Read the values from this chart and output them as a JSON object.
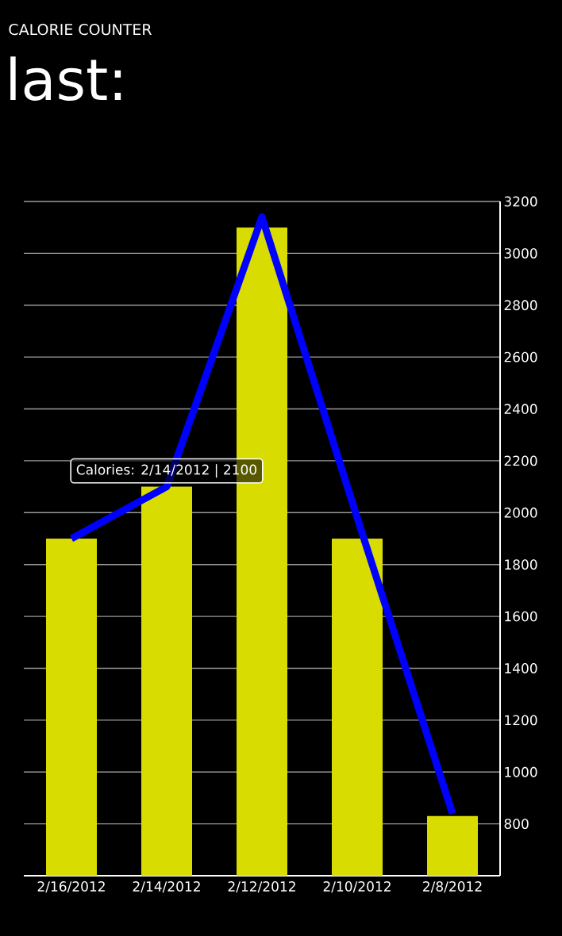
{
  "chart_data": {
    "type": "bar",
    "title": "CALORIE COUNTER",
    "subtitle": "last:",
    "categories": [
      "2/16/2012",
      "2/14/2012",
      "2/12/2012",
      "2/10/2012",
      "2/8/2012"
    ],
    "series": [
      {
        "color": "#d9dc00",
        "values": [
          1900,
          2100,
          3100,
          1900,
          830
        ]
      },
      {
        "type": "line",
        "color": "#0000ff",
        "values": [
          1900,
          2100,
          3140,
          1980,
          840
        ]
      }
    ],
    "ylim": [
      600,
      3200
    ],
    "yticks": [
      800,
      1000,
      1200,
      1400,
      1600,
      1800,
      2000,
      2200,
      2400,
      2600,
      2800,
      3000,
      3200
    ],
    "grid": "y",
    "annotations": [
      {
        "text": "Calories: 2/14/2012 | 2100",
        "x": "2/14/2012",
        "y": 2100
      }
    ]
  }
}
